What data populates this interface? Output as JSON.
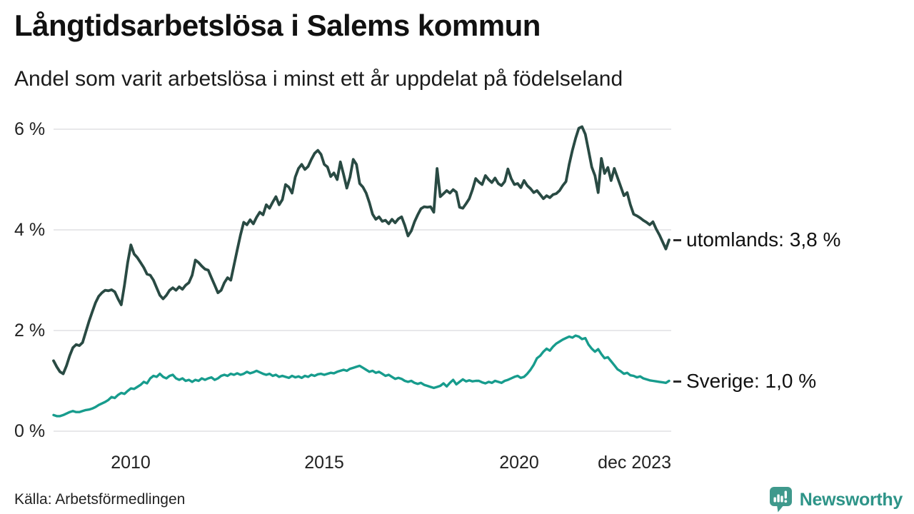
{
  "chart_data": {
    "type": "line",
    "title": "Långtidsarbetslösa i Salems kommun",
    "subtitle": "Andel som varit arbetslösa i minst ett år uppdelat på födelseland",
    "x_axis": {
      "start": "2008-01",
      "end": "2023-12",
      "interval": "monthly",
      "tick_labels": [
        "2010",
        "2015",
        "2020",
        "dec 2023"
      ]
    },
    "y_axis": {
      "unit": "%",
      "tick_values": [
        0,
        2,
        4,
        6
      ],
      "tick_labels_top_down": [
        "6 %",
        "4 %",
        "2 %",
        "0 %"
      ]
    },
    "ylim": [
      0,
      6
    ],
    "grid": true,
    "grid_color": "#e8e8ea",
    "legend_position": "end-of-line-labels",
    "series": [
      {
        "name": "utomlands",
        "end_label": "utomlands: 3,8 %",
        "last_value_display": "3,8 %",
        "color": "#294a43",
        "values": [
          1.4,
          1.28,
          1.18,
          1.14,
          1.3,
          1.5,
          1.66,
          1.72,
          1.7,
          1.76,
          1.97,
          2.18,
          2.37,
          2.55,
          2.68,
          2.75,
          2.8,
          2.79,
          2.81,
          2.77,
          2.63,
          2.51,
          2.9,
          3.35,
          3.7,
          3.52,
          3.45,
          3.35,
          3.25,
          3.12,
          3.1,
          3.0,
          2.85,
          2.7,
          2.63,
          2.7,
          2.8,
          2.85,
          2.8,
          2.87,
          2.82,
          2.9,
          2.95,
          3.1,
          3.4,
          3.35,
          3.28,
          3.22,
          3.2,
          3.05,
          2.9,
          2.75,
          2.8,
          2.95,
          3.05,
          3.0,
          3.3,
          3.6,
          3.9,
          4.15,
          4.1,
          4.2,
          4.12,
          4.25,
          4.35,
          4.3,
          4.5,
          4.43,
          4.55,
          4.66,
          4.5,
          4.6,
          4.9,
          4.85,
          4.73,
          5.05,
          5.22,
          5.3,
          5.2,
          5.26,
          5.4,
          5.52,
          5.58,
          5.5,
          5.3,
          5.25,
          5.06,
          5.13,
          5.0,
          5.35,
          5.1,
          4.83,
          5.05,
          5.4,
          5.3,
          4.92,
          4.85,
          4.73,
          4.54,
          4.31,
          4.21,
          4.26,
          4.17,
          4.19,
          4.12,
          4.21,
          4.14,
          4.22,
          4.26,
          4.09,
          3.88,
          3.98,
          4.16,
          4.3,
          4.42,
          4.46,
          4.45,
          4.46,
          4.35,
          5.22,
          4.66,
          4.72,
          4.78,
          4.73,
          4.8,
          4.75,
          4.45,
          4.43,
          4.52,
          4.62,
          4.8,
          5.02,
          4.95,
          4.9,
          5.08,
          5.0,
          4.94,
          5.03,
          4.92,
          4.88,
          4.96,
          5.21,
          5.02,
          4.9,
          4.92,
          4.84,
          4.98,
          4.88,
          4.82,
          4.74,
          4.78,
          4.7,
          4.62,
          4.68,
          4.64,
          4.7,
          4.72,
          4.78,
          4.88,
          4.96,
          5.3,
          5.58,
          5.82,
          6.02,
          6.05,
          5.9,
          5.58,
          5.25,
          5.08,
          4.74,
          5.42,
          5.12,
          5.24,
          4.98,
          5.22,
          5.04,
          4.86,
          4.68,
          4.74,
          4.5,
          4.31,
          4.28,
          4.24,
          4.19,
          4.15,
          4.1,
          4.16,
          4.02,
          3.9,
          3.76,
          3.62,
          3.8
        ]
      },
      {
        "name": "Sverige",
        "end_label": "Sverige: 1,0 %",
        "last_value_display": "1,0 %",
        "color": "#179c8d",
        "values": [
          0.32,
          0.3,
          0.3,
          0.32,
          0.35,
          0.38,
          0.4,
          0.38,
          0.38,
          0.4,
          0.42,
          0.43,
          0.45,
          0.48,
          0.52,
          0.55,
          0.58,
          0.62,
          0.68,
          0.66,
          0.72,
          0.76,
          0.74,
          0.8,
          0.85,
          0.84,
          0.88,
          0.92,
          0.98,
          0.95,
          1.05,
          1.1,
          1.08,
          1.14,
          1.08,
          1.05,
          1.1,
          1.12,
          1.05,
          1.02,
          1.05,
          1.0,
          1.02,
          0.98,
          1.02,
          1.0,
          1.05,
          1.02,
          1.05,
          1.07,
          1.02,
          1.05,
          1.1,
          1.12,
          1.1,
          1.14,
          1.12,
          1.15,
          1.12,
          1.14,
          1.18,
          1.15,
          1.17,
          1.2,
          1.17,
          1.14,
          1.12,
          1.14,
          1.1,
          1.12,
          1.08,
          1.1,
          1.08,
          1.06,
          1.1,
          1.07,
          1.09,
          1.06,
          1.1,
          1.08,
          1.12,
          1.1,
          1.13,
          1.14,
          1.12,
          1.14,
          1.16,
          1.15,
          1.18,
          1.2,
          1.22,
          1.2,
          1.24,
          1.26,
          1.28,
          1.3,
          1.26,
          1.22,
          1.18,
          1.2,
          1.16,
          1.18,
          1.14,
          1.1,
          1.12,
          1.08,
          1.04,
          1.06,
          1.04,
          1.0,
          0.98,
          1.0,
          0.96,
          0.94,
          0.96,
          0.92,
          0.9,
          0.88,
          0.86,
          0.88,
          0.9,
          0.95,
          0.89,
          0.96,
          1.02,
          0.93,
          0.98,
          1.03,
          0.99,
          1.01,
          0.99,
          1.0,
          1.0,
          0.97,
          0.95,
          0.98,
          0.96,
          1.0,
          0.98,
          0.96,
          1.0,
          1.02,
          1.05,
          1.08,
          1.1,
          1.06,
          1.08,
          1.14,
          1.22,
          1.32,
          1.45,
          1.5,
          1.58,
          1.64,
          1.6,
          1.68,
          1.74,
          1.78,
          1.82,
          1.85,
          1.88,
          1.86,
          1.9,
          1.88,
          1.83,
          1.85,
          1.72,
          1.64,
          1.58,
          1.63,
          1.53,
          1.45,
          1.47,
          1.39,
          1.31,
          1.23,
          1.19,
          1.14,
          1.16,
          1.11,
          1.1,
          1.07,
          1.09,
          1.05,
          1.03,
          1.01,
          1.0,
          0.99,
          0.98,
          0.97,
          0.96,
          1.0
        ]
      }
    ]
  },
  "footer": {
    "source": "Källa: Arbetsförmedlingen",
    "brand": "Newsworthy",
    "brand_color": "#2e9488",
    "brand_icon_color": "#3f998c"
  }
}
